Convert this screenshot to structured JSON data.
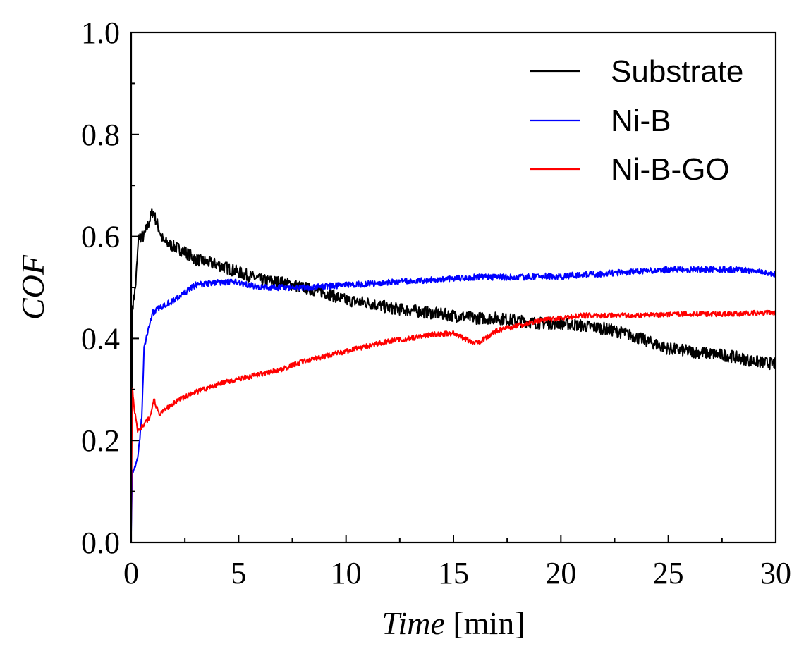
{
  "chart_data": {
    "type": "line",
    "title": "",
    "xlabel_italic": "Time",
    "xlabel_unit": "[min]",
    "ylabel": "COF",
    "xlim": [
      0,
      30
    ],
    "ylim": [
      0.0,
      1.0
    ],
    "x_ticks": [
      "0",
      "5",
      "10",
      "15",
      "20",
      "25",
      "30"
    ],
    "x_tick_values": [
      0,
      5,
      10,
      15,
      20,
      25,
      30
    ],
    "y_ticks": [
      "0.0",
      "0.2",
      "0.4",
      "0.6",
      "0.8",
      "1.0"
    ],
    "y_tick_values": [
      0.0,
      0.2,
      0.4,
      0.6,
      0.8,
      1.0
    ],
    "grid": false,
    "legend_position": "top-right",
    "series": [
      {
        "name": "Substrate",
        "color": "#000000",
        "noise": 0.012,
        "points": [
          [
            0,
            0.03
          ],
          [
            0.05,
            0.46
          ],
          [
            0.2,
            0.5
          ],
          [
            0.35,
            0.6
          ],
          [
            0.6,
            0.6
          ],
          [
            1.0,
            0.65
          ],
          [
            1.5,
            0.59
          ],
          [
            2,
            0.58
          ],
          [
            2.5,
            0.57
          ],
          [
            3,
            0.555
          ],
          [
            4,
            0.545
          ],
          [
            5,
            0.53
          ],
          [
            6,
            0.515
          ],
          [
            7,
            0.51
          ],
          [
            8,
            0.5
          ],
          [
            9,
            0.49
          ],
          [
            10,
            0.475
          ],
          [
            11,
            0.47
          ],
          [
            12,
            0.46
          ],
          [
            13,
            0.455
          ],
          [
            14,
            0.45
          ],
          [
            15,
            0.445
          ],
          [
            16,
            0.44
          ],
          [
            17,
            0.44
          ],
          [
            18,
            0.435
          ],
          [
            19,
            0.43
          ],
          [
            20,
            0.43
          ],
          [
            21,
            0.425
          ],
          [
            22,
            0.42
          ],
          [
            23,
            0.41
          ],
          [
            24,
            0.395
          ],
          [
            25,
            0.38
          ],
          [
            26,
            0.375
          ],
          [
            27,
            0.37
          ],
          [
            28,
            0.365
          ],
          [
            29,
            0.355
          ],
          [
            30,
            0.35
          ]
        ]
      },
      {
        "name": "Ni-B",
        "color": "#0000ff",
        "noise": 0.006,
        "points": [
          [
            0,
            0.02
          ],
          [
            0.05,
            0.14
          ],
          [
            0.3,
            0.16
          ],
          [
            0.5,
            0.25
          ],
          [
            0.6,
            0.38
          ],
          [
            0.8,
            0.42
          ],
          [
            1.0,
            0.45
          ],
          [
            1.5,
            0.465
          ],
          [
            2,
            0.475
          ],
          [
            2.5,
            0.49
          ],
          [
            3,
            0.505
          ],
          [
            4,
            0.51
          ],
          [
            5,
            0.51
          ],
          [
            6,
            0.5
          ],
          [
            7,
            0.5
          ],
          [
            8,
            0.5
          ],
          [
            9,
            0.502
          ],
          [
            10,
            0.505
          ],
          [
            11,
            0.507
          ],
          [
            12,
            0.51
          ],
          [
            13,
            0.512
          ],
          [
            14,
            0.515
          ],
          [
            15,
            0.518
          ],
          [
            16,
            0.52
          ],
          [
            17,
            0.52
          ],
          [
            18,
            0.52
          ],
          [
            19,
            0.522
          ],
          [
            20,
            0.522
          ],
          [
            21,
            0.525
          ],
          [
            22,
            0.527
          ],
          [
            23,
            0.53
          ],
          [
            24,
            0.532
          ],
          [
            25,
            0.535
          ],
          [
            26,
            0.535
          ],
          [
            27,
            0.535
          ],
          [
            28,
            0.535
          ],
          [
            29,
            0.532
          ],
          [
            30,
            0.525
          ]
        ]
      },
      {
        "name": "Ni-B-GO",
        "color": "#ff0000",
        "noise": 0.005,
        "points": [
          [
            0,
            0.03
          ],
          [
            0.05,
            0.31
          ],
          [
            0.15,
            0.26
          ],
          [
            0.3,
            0.22
          ],
          [
            0.6,
            0.23
          ],
          [
            0.9,
            0.25
          ],
          [
            1.05,
            0.28
          ],
          [
            1.3,
            0.25
          ],
          [
            2,
            0.275
          ],
          [
            3,
            0.295
          ],
          [
            4,
            0.31
          ],
          [
            5,
            0.32
          ],
          [
            6,
            0.33
          ],
          [
            7,
            0.34
          ],
          [
            8,
            0.355
          ],
          [
            9,
            0.365
          ],
          [
            10,
            0.375
          ],
          [
            11,
            0.385
          ],
          [
            12,
            0.395
          ],
          [
            13,
            0.4
          ],
          [
            14,
            0.408
          ],
          [
            15,
            0.41
          ],
          [
            15.5,
            0.4
          ],
          [
            16,
            0.39
          ],
          [
            16.5,
            0.4
          ],
          [
            17,
            0.415
          ],
          [
            18,
            0.425
          ],
          [
            19,
            0.435
          ],
          [
            20,
            0.44
          ],
          [
            21,
            0.445
          ],
          [
            22,
            0.445
          ],
          [
            23,
            0.445
          ],
          [
            24,
            0.445
          ],
          [
            25,
            0.447
          ],
          [
            26,
            0.448
          ],
          [
            27,
            0.448
          ],
          [
            28,
            0.448
          ],
          [
            29,
            0.45
          ],
          [
            30,
            0.45
          ]
        ]
      }
    ]
  }
}
